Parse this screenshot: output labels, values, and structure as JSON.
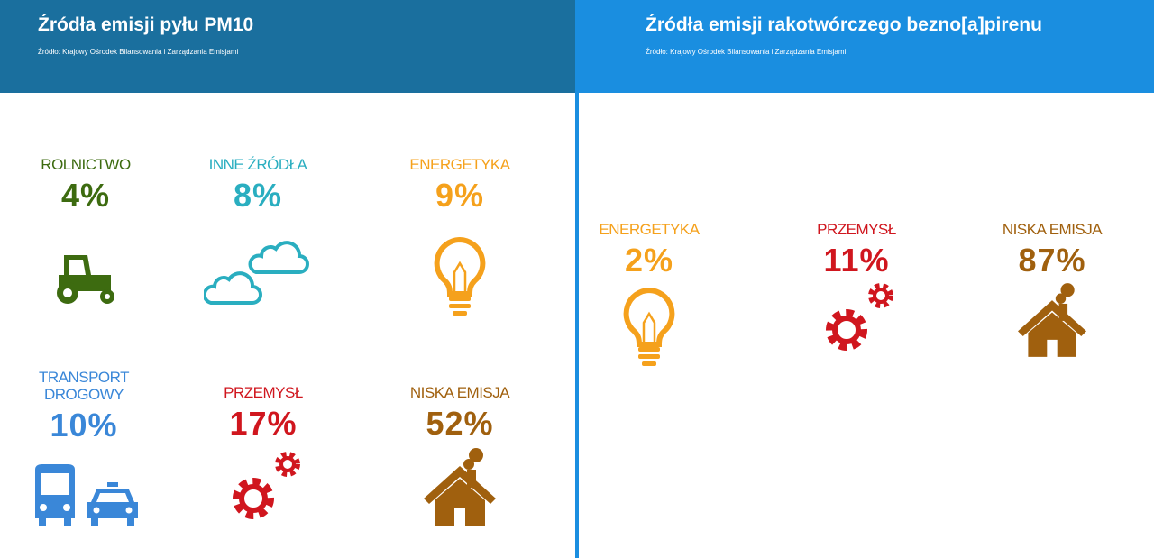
{
  "panels": [
    {
      "title": "Źródła emisji pyłu PM10",
      "source": "Źródło: Krajowy Ośrodek Bilansowania i Zarządzania Emisjami",
      "items": [
        {
          "label": "ROLNICTWO",
          "value": "4%"
        },
        {
          "label": "INNE ŹRÓDŁA",
          "value": "8%"
        },
        {
          "label": "ENERGETYKA",
          "value": "9%"
        },
        {
          "label": "TRANSPORT DROGOWY",
          "value": "10%"
        },
        {
          "label": "PRZEMYSŁ",
          "value": "17%"
        },
        {
          "label": "NISKA EMISJA",
          "value": "52%"
        }
      ]
    },
    {
      "title": "Źródła emisji rakotwórczego bezno[a]pirenu",
      "source": "Źródło: Krajowy Ośrodek Bilansowania i Zarządzania Emisjami",
      "items": [
        {
          "label": "ENERGETYKA",
          "value": "2%"
        },
        {
          "label": "PRZEMYSŁ",
          "value": "11%"
        },
        {
          "label": "NISKA EMISJA",
          "value": "87%"
        }
      ]
    }
  ]
}
